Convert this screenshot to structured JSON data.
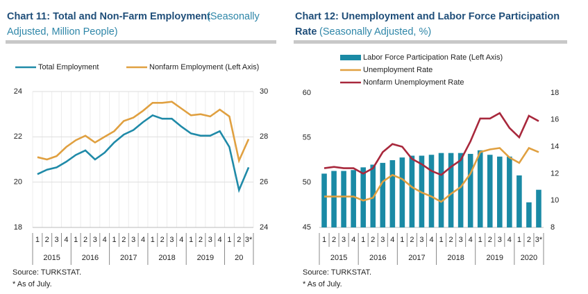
{
  "chart_data": [
    {
      "type": "line",
      "title": "Chart 11: Total and Non-Farm Employment",
      "subtitle": "(Seasonally Adjusted, Million People)",
      "categories": [
        "1",
        "2",
        "3",
        "4",
        "1",
        "2",
        "3",
        "4",
        "1",
        "2",
        "3",
        "4",
        "1",
        "2",
        "3",
        "4",
        "1",
        "2",
        "3",
        "4",
        "1",
        "2",
        "3*"
      ],
      "year_groups": [
        "2015",
        "2016",
        "2017",
        "2018",
        "2019",
        "20"
      ],
      "series": [
        {
          "name": "Total Employment",
          "color": "#1f8aa8",
          "axis": "y2",
          "values": [
            26.35,
            26.55,
            26.65,
            26.9,
            27.2,
            27.4,
            27.0,
            27.3,
            27.75,
            28.1,
            28.3,
            28.65,
            28.95,
            28.8,
            28.8,
            28.45,
            28.15,
            28.05,
            28.05,
            28.25,
            27.55,
            25.65,
            26.65
          ]
        },
        {
          "name": "Nonfarm Employment (Left Axis)",
          "color": "#e0a040",
          "values": [
            21.1,
            21.0,
            21.15,
            21.55,
            21.85,
            22.05,
            21.75,
            22.0,
            22.25,
            22.7,
            22.85,
            23.15,
            23.5,
            23.5,
            23.55,
            23.25,
            22.95,
            23.0,
            22.9,
            23.2,
            22.9,
            20.95,
            21.9
          ]
        }
      ],
      "ylim": [
        18,
        24
      ],
      "yticks": [
        18,
        20,
        22,
        24
      ],
      "y2lim": [
        24,
        30
      ],
      "y2ticks": [
        24,
        26,
        28,
        30
      ],
      "grid": true,
      "source": "Source: TURKSTAT.",
      "note": "* As of July."
    },
    {
      "type": "bar",
      "title": "Chart 12: Unemployment and Labor Force Participation",
      "title_line2": "Rate",
      "subtitle": "(Seasonally Adjusted, %)",
      "categories": [
        "1",
        "2",
        "3",
        "4",
        "1",
        "2",
        "3",
        "4",
        "1",
        "2",
        "3",
        "4",
        "1",
        "2",
        "3",
        "4",
        "1",
        "2",
        "3",
        "4",
        "1",
        "2",
        "3*"
      ],
      "year_groups": [
        "2015",
        "2016",
        "2017",
        "2018",
        "2019",
        "2020"
      ],
      "series": [
        {
          "name": "Labor Force Participation Rate (Left Axis)",
          "color": "#1a8aa5",
          "type": "bar",
          "values": [
            51.0,
            51.3,
            51.3,
            51.4,
            51.7,
            52.0,
            52.2,
            52.5,
            52.8,
            53.0,
            53.0,
            53.1,
            53.3,
            53.3,
            53.3,
            53.2,
            53.6,
            53.1,
            52.9,
            52.9,
            50.8,
            47.8,
            49.2
          ]
        },
        {
          "name": "Unemployment Rate",
          "color": "#e0a040",
          "type": "line",
          "axis": "y2",
          "values": [
            10.3,
            10.3,
            10.3,
            10.3,
            10.0,
            10.2,
            11.4,
            11.9,
            11.6,
            11.0,
            10.6,
            10.3,
            9.9,
            10.5,
            11.0,
            12.0,
            13.6,
            13.8,
            13.9,
            13.2,
            12.8,
            13.9,
            13.6
          ]
        },
        {
          "name": "Nonfarm Unemployment Rate",
          "color": "#a8283c",
          "type": "line",
          "axis": "y2",
          "values": [
            12.4,
            12.5,
            12.4,
            12.4,
            12.0,
            12.4,
            13.6,
            14.2,
            14.0,
            13.1,
            12.7,
            12.2,
            11.9,
            12.5,
            13.0,
            14.4,
            16.1,
            16.1,
            16.5,
            15.4,
            14.7,
            16.3,
            15.9
          ]
        }
      ],
      "ylim": [
        45,
        60
      ],
      "yticks": [
        45,
        50,
        55,
        60
      ],
      "y2lim": [
        8,
        18
      ],
      "y2ticks": [
        8,
        10,
        12,
        14,
        16,
        18
      ],
      "grid": false,
      "source": "Source: TURKSTAT.",
      "note": "* As of July."
    }
  ]
}
